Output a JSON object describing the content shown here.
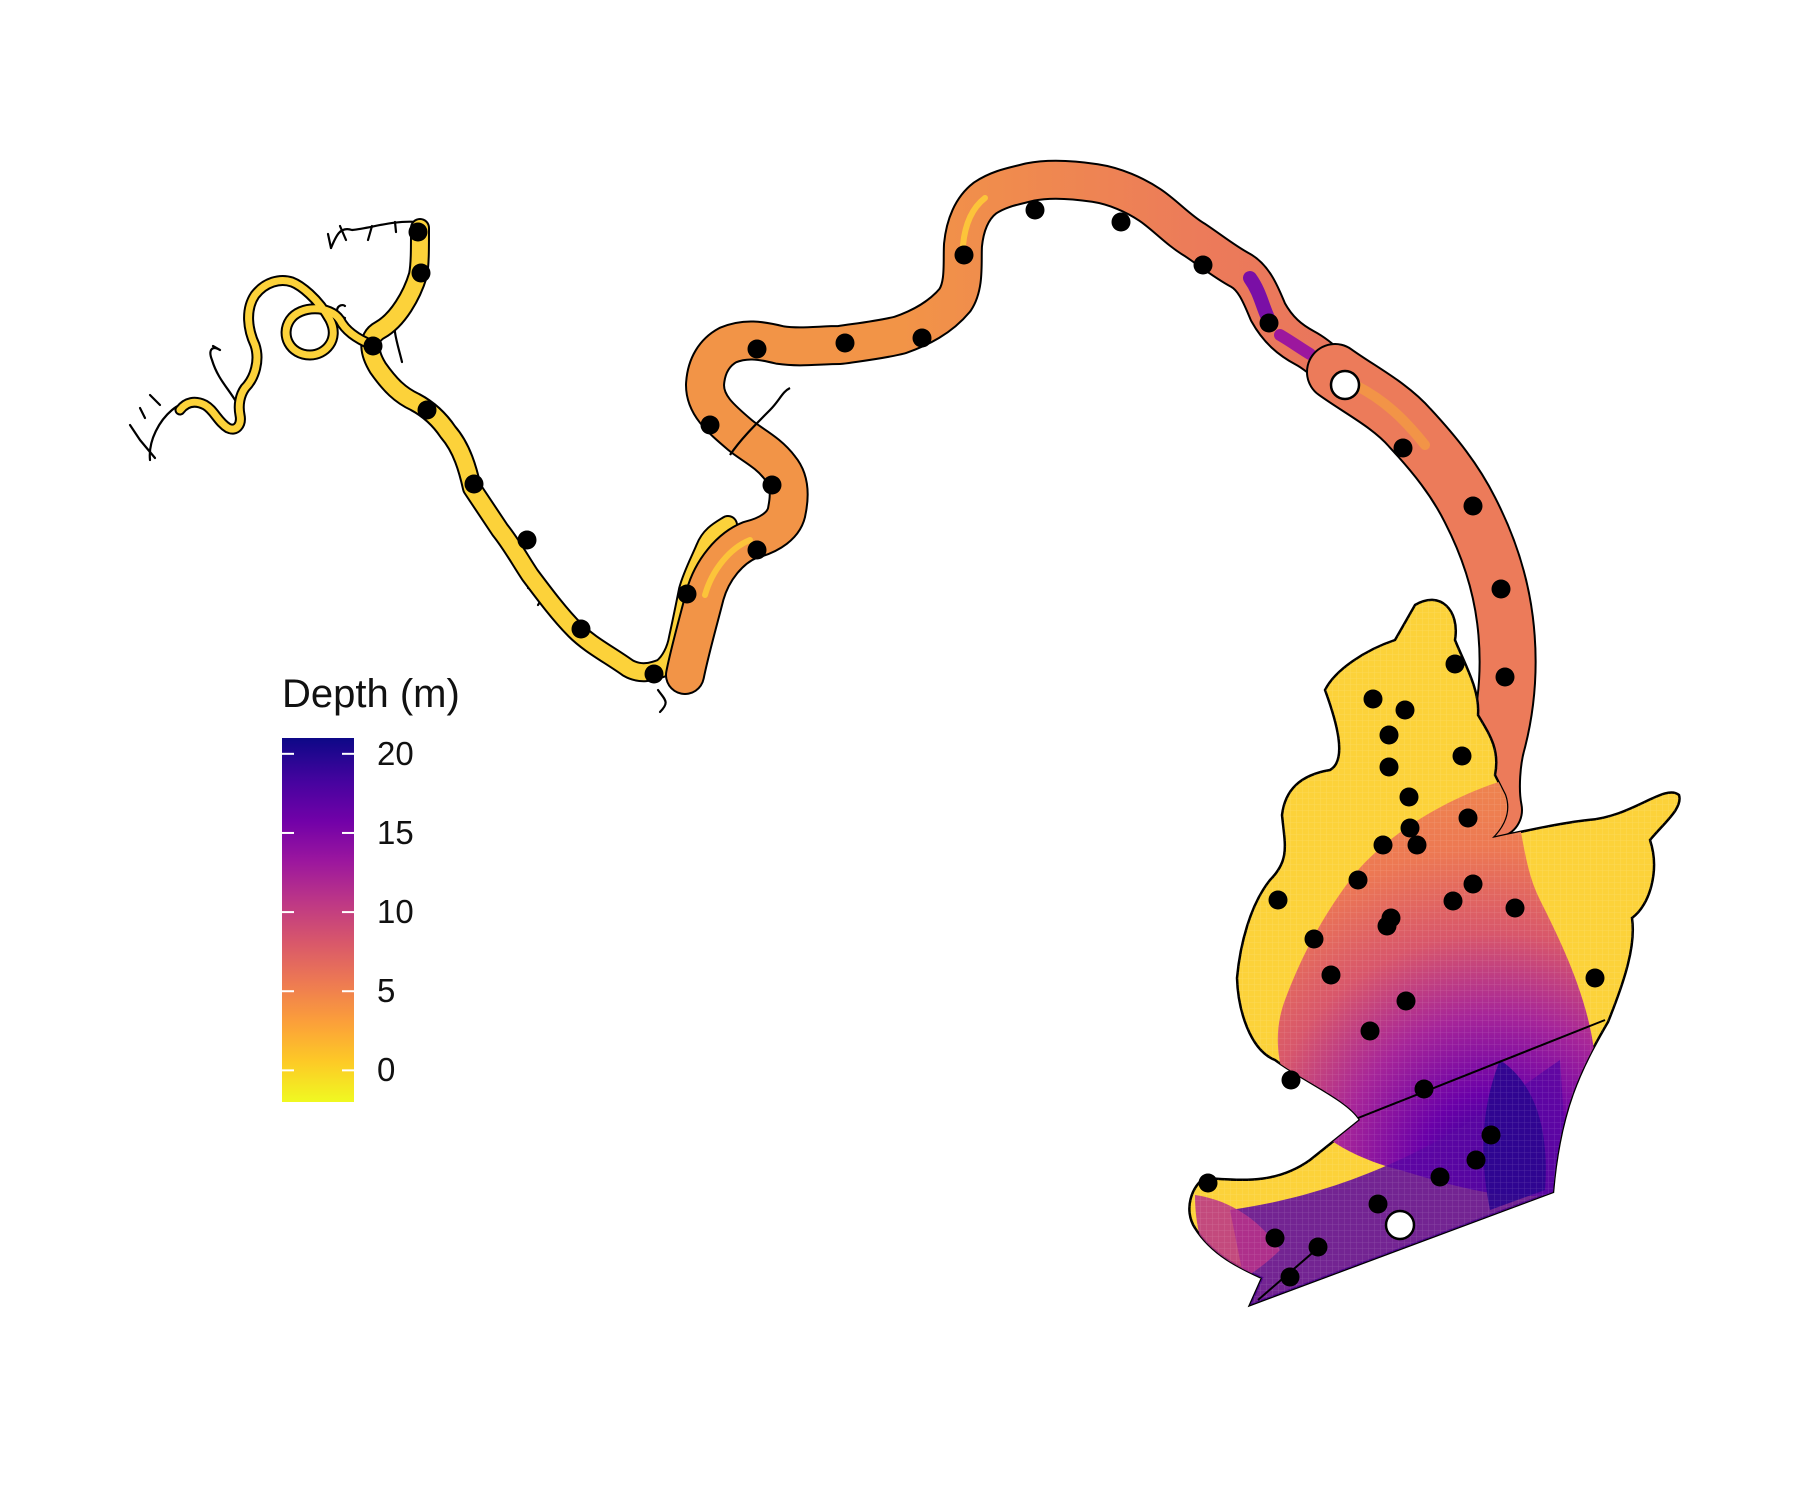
{
  "legend": {
    "title": "Depth (m)",
    "ticks": [
      "20",
      "15",
      "10",
      "5",
      "0"
    ],
    "tick_values": [
      20,
      15,
      10,
      5,
      0
    ],
    "range": [
      -2,
      21
    ],
    "palette": "plasma (reversed)",
    "colors": [
      "#f0f921",
      "#fdca26",
      "#fb9f3a",
      "#ed7953",
      "#d8576b",
      "#bd3786",
      "#9c179e",
      "#7201a8",
      "#46039f",
      "#0d0887"
    ]
  },
  "colors": {
    "shallow": "#fcd23a",
    "medium": "#ec7b5a",
    "deep": "#6a13a6",
    "outline": "#000000",
    "station": "#000000",
    "highlight_station": "#ffffff"
  },
  "map_features": {
    "water_body": "river estuary and bay",
    "sampling_stations": 52,
    "highlighted_stations": 2,
    "station_marker": "black-filled-circle",
    "highlighted_marker": "white-filled-circle"
  }
}
